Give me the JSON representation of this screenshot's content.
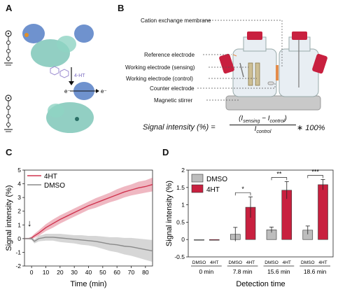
{
  "panels": {
    "a": "A",
    "b": "B",
    "c": "C",
    "d": "D"
  },
  "panel_a": {
    "arrow_label": "4-HT",
    "electron_left": "e⁻",
    "electron_right": "e⁻"
  },
  "panel_b": {
    "labels": {
      "membrane": "Cation exchange membrane",
      "reference": "Reference electrode",
      "working_sensing": "Working electrode (sensing)",
      "working_control": "Working electrode (control)",
      "counter": "Counter electrode",
      "stirrer": "Magnetic stirrer"
    },
    "equation": {
      "lhs": "Signal intensity (%) =",
      "numerator": "(I",
      "num_sub1": "sensing",
      "num_mid": " − I",
      "num_sub2": "control",
      "num_end": ")",
      "denominator": "I",
      "den_sub": "control",
      "rhs": "∗ 100%"
    },
    "colors": {
      "electrode": "#c8203f",
      "stirrer": "#c9c9c9",
      "cell": "#e8eef3"
    }
  },
  "chart_data": [
    {
      "type": "line",
      "xlabel": "Time (min)",
      "ylabel": "Signal intensity (%)",
      "xlim": [
        -5,
        85
      ],
      "ylim": [
        -2,
        5
      ],
      "xticks": [
        "0",
        "10",
        "20",
        "30",
        "40",
        "50",
        "60",
        "70",
        "80"
      ],
      "yticks": [
        "-2",
        "-1",
        "0",
        "1",
        "2",
        "3",
        "4",
        "5"
      ],
      "legend_placement": "top-left",
      "annotation": "↓",
      "annotation_x": 0,
      "series": [
        {
          "name": "4HT",
          "color": "#d0344f",
          "x": [
            -5,
            -2,
            0,
            2,
            5,
            10,
            15,
            20,
            25,
            30,
            35,
            40,
            45,
            50,
            55,
            60,
            65,
            70,
            75,
            80,
            85
          ],
          "y": [
            0.0,
            0.0,
            0.05,
            0.2,
            0.4,
            0.8,
            1.1,
            1.4,
            1.65,
            1.9,
            2.15,
            2.4,
            2.6,
            2.8,
            3.0,
            3.2,
            3.4,
            3.55,
            3.7,
            3.8,
            3.95
          ],
          "err": [
            0.05,
            0.05,
            0.1,
            0.15,
            0.2,
            0.25,
            0.3,
            0.3,
            0.3,
            0.3,
            0.3,
            0.3,
            0.35,
            0.35,
            0.35,
            0.4,
            0.4,
            0.4,
            0.45,
            0.45,
            0.5
          ]
        },
        {
          "name": "DMSO",
          "color": "#8a8a8a",
          "x": [
            -5,
            -2,
            0,
            2,
            5,
            10,
            15,
            20,
            25,
            30,
            35,
            40,
            45,
            50,
            55,
            60,
            65,
            70,
            75,
            80,
            85
          ],
          "y": [
            0.0,
            0.0,
            0.0,
            -0.2,
            0.0,
            0.1,
            0.1,
            0.05,
            0.0,
            -0.05,
            -0.1,
            -0.15,
            -0.2,
            -0.3,
            -0.4,
            -0.45,
            -0.55,
            -0.6,
            -0.7,
            -0.8,
            -0.9
          ],
          "err": [
            0.05,
            0.05,
            0.1,
            0.15,
            0.2,
            0.25,
            0.25,
            0.3,
            0.3,
            0.3,
            0.35,
            0.35,
            0.4,
            0.45,
            0.5,
            0.55,
            0.6,
            0.65,
            0.7,
            0.75,
            0.8
          ]
        }
      ]
    },
    {
      "type": "bar",
      "xlabel": "Detection time",
      "ylabel": "Signal intensity (%)",
      "ylim": [
        -0.5,
        2.0
      ],
      "yticks": [
        "-0.5",
        "0",
        "0.5",
        "1",
        "1.5",
        "2"
      ],
      "groups": [
        "0 min",
        "7.8 min",
        "15.6 min",
        "18.6 min"
      ],
      "bar_labels": [
        "DMSO",
        "4HT"
      ],
      "legend_placement": "top-left",
      "series": [
        {
          "name": "DMSO",
          "color": "#bdbdbd",
          "values": [
            0.0,
            0.15,
            0.28,
            0.27
          ],
          "err": [
            0.0,
            0.2,
            0.08,
            0.12
          ]
        },
        {
          "name": "4HT",
          "color": "#c8203f",
          "values": [
            0.0,
            0.93,
            1.42,
            1.58
          ],
          "err": [
            0.0,
            0.3,
            0.25,
            0.15
          ]
        }
      ],
      "significance": [
        "*",
        "**",
        "***"
      ]
    }
  ]
}
